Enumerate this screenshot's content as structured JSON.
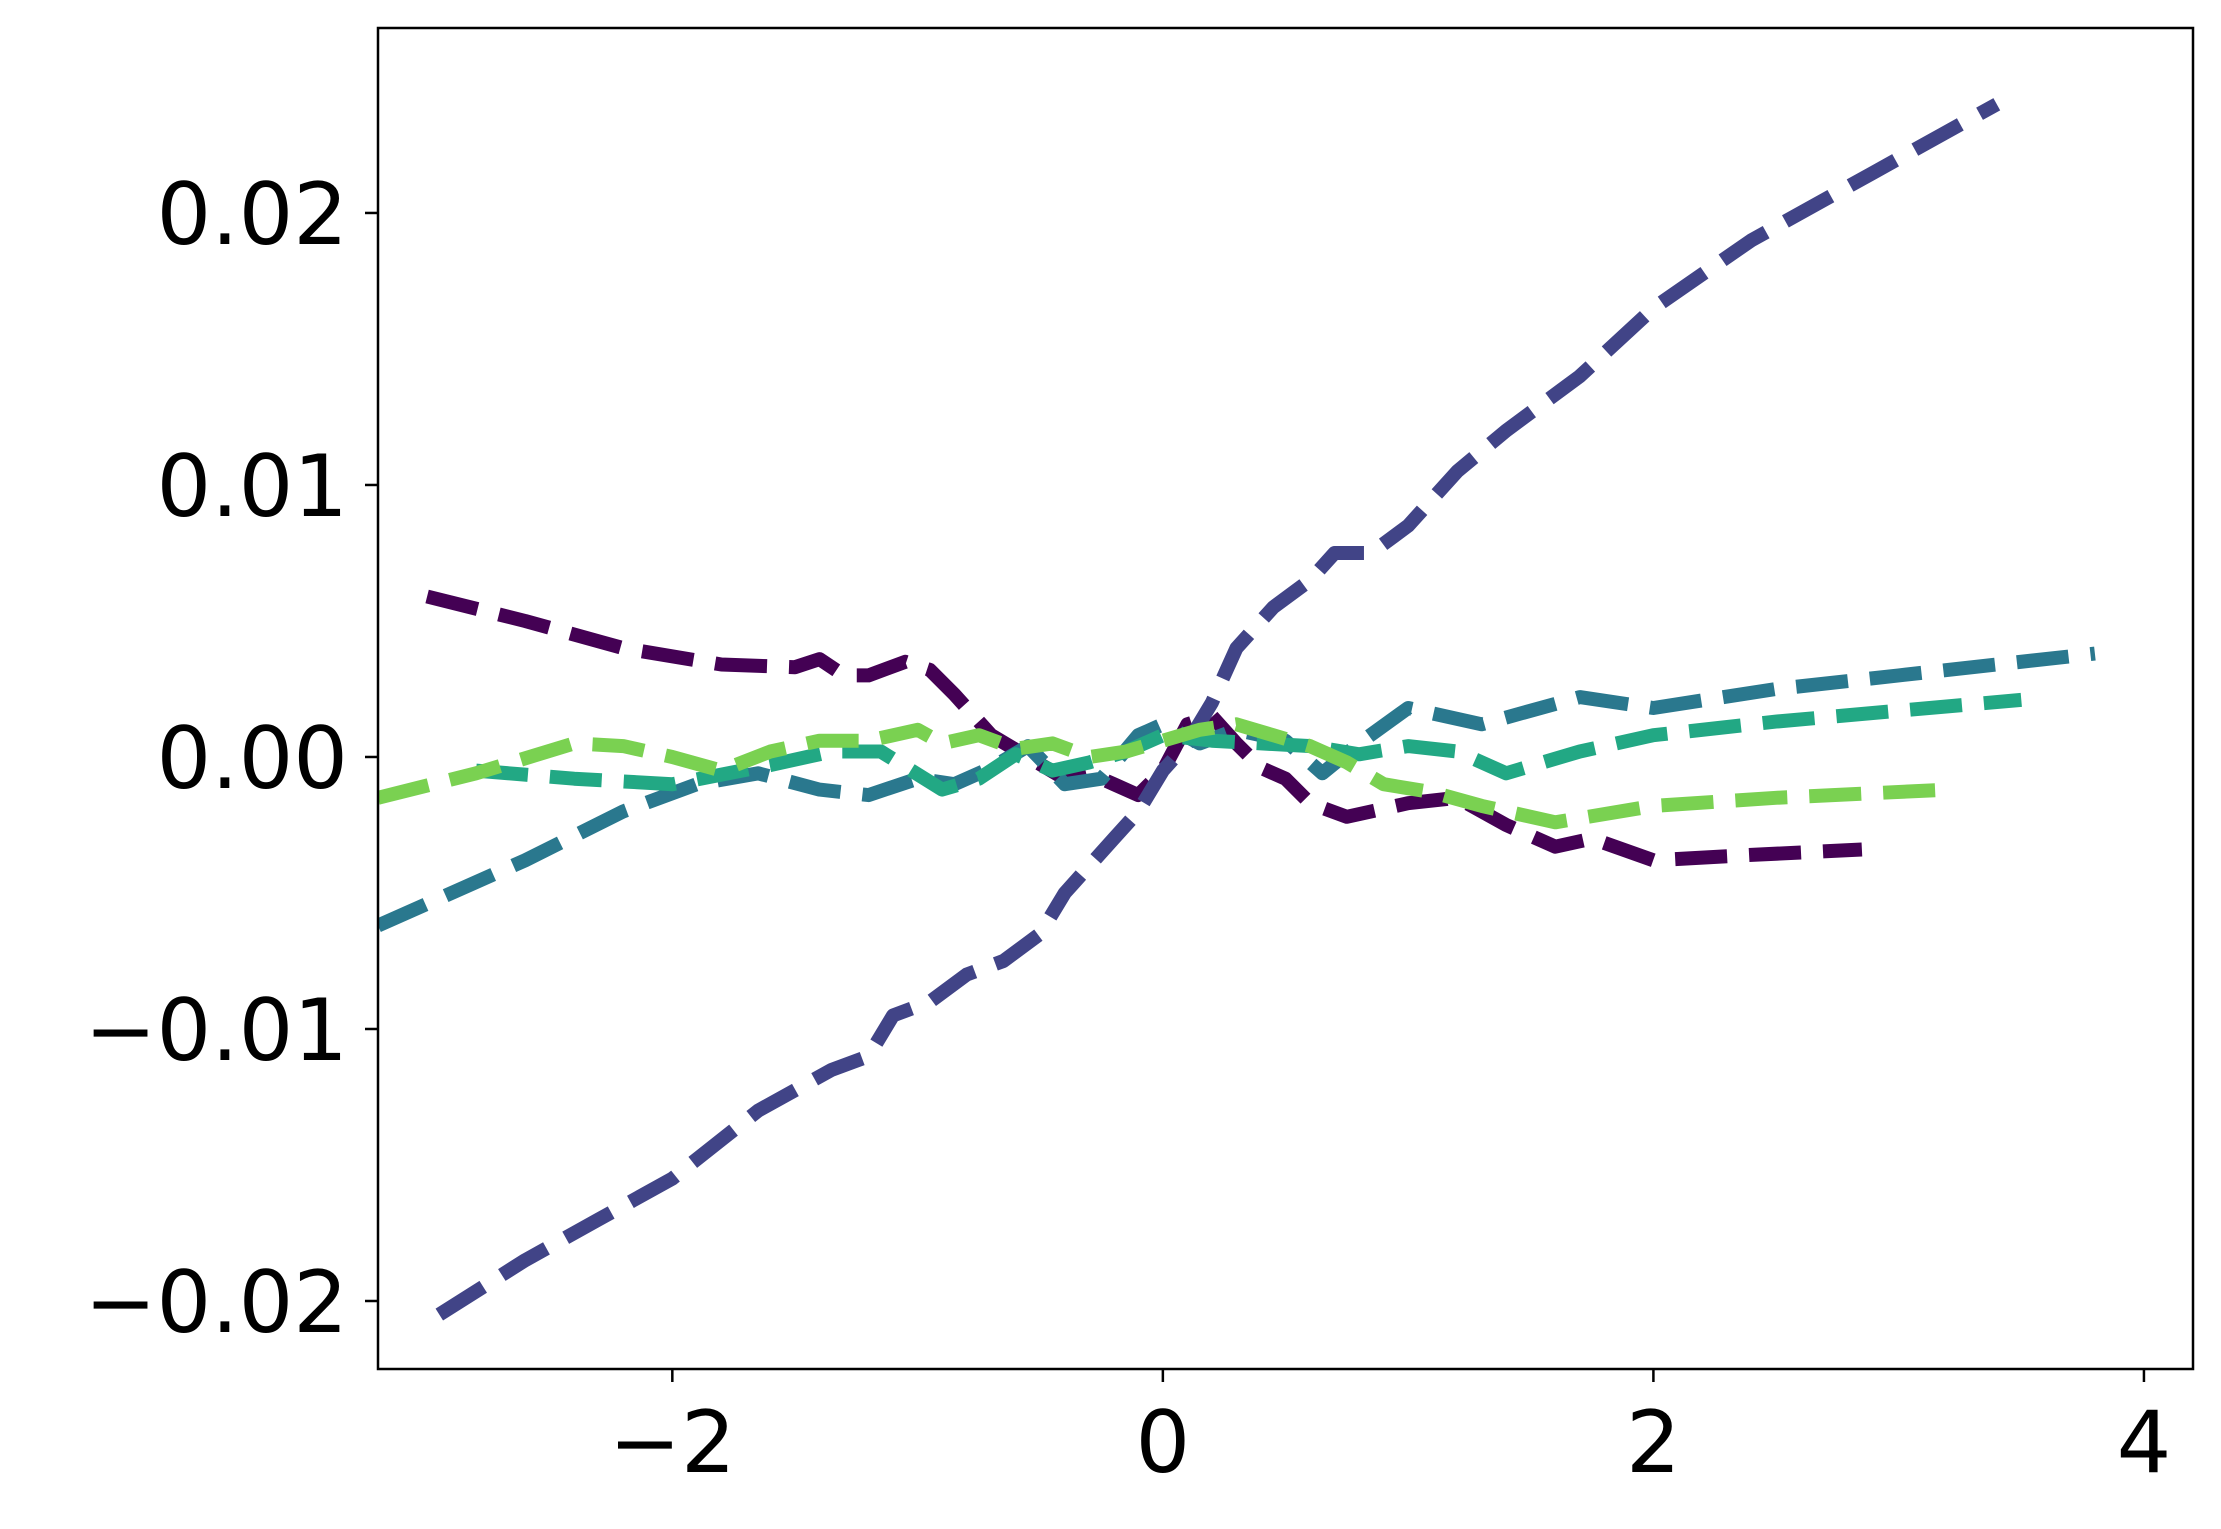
{
  "chart_data": {
    "type": "line",
    "title": "",
    "xlabel": "",
    "ylabel": "",
    "xlim": [
      -3.2,
      4.2
    ],
    "ylim": [
      -0.0225,
      0.0268
    ],
    "xticks": [
      {
        "value": -2,
        "label": "−2"
      },
      {
        "value": 0,
        "label": "0"
      },
      {
        "value": 2,
        "label": "2"
      },
      {
        "value": 4,
        "label": "4"
      }
    ],
    "yticks": [
      {
        "value": -0.02,
        "label": "−0.02"
      },
      {
        "value": -0.01,
        "label": "−0.01"
      },
      {
        "value": 0.0,
        "label": "0.00"
      },
      {
        "value": 0.01,
        "label": "0.01"
      },
      {
        "value": 0.02,
        "label": "0.02"
      }
    ],
    "grid": false,
    "line_style": "dashed",
    "series": [
      {
        "color": "#440154",
        "points": [
          [
            -3.0,
            0.0059
          ],
          [
            -2.6,
            0.005
          ],
          [
            -2.2,
            0.004
          ],
          [
            -1.8,
            0.0034
          ],
          [
            -1.5,
            0.0033
          ],
          [
            -1.4,
            0.0036
          ],
          [
            -1.3,
            0.003
          ],
          [
            -1.2,
            0.003
          ],
          [
            -1.05,
            0.0035
          ],
          [
            -0.95,
            0.0032
          ],
          [
            -0.85,
            0.0023
          ],
          [
            -0.7,
            0.0008
          ],
          [
            -0.55,
            0.0
          ],
          [
            -0.4,
            -0.0008
          ],
          [
            -0.3,
            -0.0006
          ],
          [
            -0.2,
            -0.001
          ],
          [
            -0.1,
            -0.0014
          ],
          [
            0.0,
            -0.0005
          ],
          [
            0.1,
            0.0012
          ],
          [
            0.2,
            0.0015
          ],
          [
            0.3,
            0.0005
          ],
          [
            0.4,
            -0.0004
          ],
          [
            0.5,
            -0.0008
          ],
          [
            0.6,
            -0.0017
          ],
          [
            0.75,
            -0.0022
          ],
          [
            0.85,
            -0.002
          ],
          [
            1.0,
            -0.0017
          ],
          [
            1.2,
            -0.0015
          ],
          [
            1.4,
            -0.0025
          ],
          [
            1.6,
            -0.0033
          ],
          [
            1.75,
            -0.003
          ],
          [
            2.0,
            -0.0038
          ],
          [
            2.4,
            -0.0036
          ],
          [
            2.85,
            -0.0034
          ]
        ]
      },
      {
        "color": "#414487",
        "points": [
          [
            -2.95,
            -0.0205
          ],
          [
            -2.6,
            -0.0185
          ],
          [
            -2.3,
            -0.017
          ],
          [
            -2.0,
            -0.0155
          ],
          [
            -1.65,
            -0.013
          ],
          [
            -1.35,
            -0.0115
          ],
          [
            -1.2,
            -0.011
          ],
          [
            -1.1,
            -0.0095
          ],
          [
            -0.95,
            -0.009
          ],
          [
            -0.8,
            -0.008
          ],
          [
            -0.65,
            -0.0075
          ],
          [
            -0.5,
            -0.0065
          ],
          [
            -0.4,
            -0.005
          ],
          [
            -0.3,
            -0.004
          ],
          [
            -0.2,
            -0.003
          ],
          [
            -0.1,
            -0.002
          ],
          [
            0.0,
            -0.0005
          ],
          [
            0.1,
            0.0005
          ],
          [
            0.2,
            0.002
          ],
          [
            0.3,
            0.004
          ],
          [
            0.45,
            0.0055
          ],
          [
            0.6,
            0.0065
          ],
          [
            0.7,
            0.0075
          ],
          [
            0.85,
            0.0075
          ],
          [
            1.0,
            0.0085
          ],
          [
            1.2,
            0.0105
          ],
          [
            1.4,
            0.012
          ],
          [
            1.7,
            0.014
          ],
          [
            2.0,
            0.0165
          ],
          [
            2.4,
            0.019
          ],
          [
            2.9,
            0.0215
          ],
          [
            3.4,
            0.024
          ]
        ]
      },
      {
        "color": "#2a788e",
        "points": [
          [
            -3.2,
            -0.0062
          ],
          [
            -2.6,
            -0.0038
          ],
          [
            -2.2,
            -0.002
          ],
          [
            -1.9,
            -0.001
          ],
          [
            -1.65,
            -0.0006
          ],
          [
            -1.4,
            -0.0012
          ],
          [
            -1.2,
            -0.0014
          ],
          [
            -1.0,
            -0.0008
          ],
          [
            -0.85,
            -0.001
          ],
          [
            -0.7,
            -0.0004
          ],
          [
            -0.55,
            0.0004
          ],
          [
            -0.4,
            -0.001
          ],
          [
            -0.25,
            -0.0008
          ],
          [
            -0.1,
            0.0008
          ],
          [
            0.0,
            0.0012
          ],
          [
            0.15,
            0.0005
          ],
          [
            0.3,
            0.001
          ],
          [
            0.5,
            0.0006
          ],
          [
            0.65,
            -0.0006
          ],
          [
            0.8,
            0.0005
          ],
          [
            1.0,
            0.0018
          ],
          [
            1.3,
            0.0012
          ],
          [
            1.7,
            0.0022
          ],
          [
            2.0,
            0.0018
          ],
          [
            2.5,
            0.0025
          ],
          [
            3.0,
            0.003
          ],
          [
            3.8,
            0.0038
          ]
        ]
      },
      {
        "color": "#22a884",
        "points": [
          [
            -2.8,
            -0.0005
          ],
          [
            -2.4,
            -0.0008
          ],
          [
            -2.0,
            -0.001
          ],
          [
            -1.6,
            -0.0003
          ],
          [
            -1.35,
            0.0002
          ],
          [
            -1.15,
            0.0002
          ],
          [
            -0.9,
            -0.0012
          ],
          [
            -0.75,
            -0.0008
          ],
          [
            -0.6,
            0.0001
          ],
          [
            -0.45,
            -0.0005
          ],
          [
            -0.3,
            -0.0002
          ],
          [
            -0.15,
            0.0002
          ],
          [
            0.0,
            0.0008
          ],
          [
            0.2,
            0.0006
          ],
          [
            0.4,
            0.0005
          ],
          [
            0.6,
            0.0004
          ],
          [
            0.8,
            0.0001
          ],
          [
            1.0,
            0.0004
          ],
          [
            1.2,
            0.0002
          ],
          [
            1.4,
            -0.0006
          ],
          [
            1.7,
            0.0002
          ],
          [
            2.0,
            0.0008
          ],
          [
            2.5,
            0.0013
          ],
          [
            3.0,
            0.0017
          ],
          [
            3.5,
            0.0021
          ]
        ]
      },
      {
        "color": "#7ad151",
        "points": [
          [
            -3.2,
            -0.0015
          ],
          [
            -2.8,
            -0.0006
          ],
          [
            -2.4,
            0.0005
          ],
          [
            -2.2,
            0.0004
          ],
          [
            -2.0,
            0.0
          ],
          [
            -1.8,
            -0.0005
          ],
          [
            -1.6,
            0.0002
          ],
          [
            -1.4,
            0.0006
          ],
          [
            -1.2,
            0.0006
          ],
          [
            -1.0,
            0.001
          ],
          [
            -0.9,
            0.0005
          ],
          [
            -0.75,
            0.0008
          ],
          [
            -0.6,
            0.0003
          ],
          [
            -0.45,
            0.0005
          ],
          [
            -0.3,
            0.0
          ],
          [
            -0.15,
            0.0002
          ],
          [
            0.0,
            0.0006
          ],
          [
            0.15,
            0.001
          ],
          [
            0.3,
            0.0012
          ],
          [
            0.45,
            0.0008
          ],
          [
            0.6,
            0.0004
          ],
          [
            0.75,
            -0.0002
          ],
          [
            0.9,
            -0.001
          ],
          [
            1.1,
            -0.0013
          ],
          [
            1.3,
            -0.0018
          ],
          [
            1.6,
            -0.0024
          ],
          [
            2.0,
            -0.0018
          ],
          [
            2.5,
            -0.0015
          ],
          [
            3.2,
            -0.0012
          ]
        ]
      }
    ]
  }
}
